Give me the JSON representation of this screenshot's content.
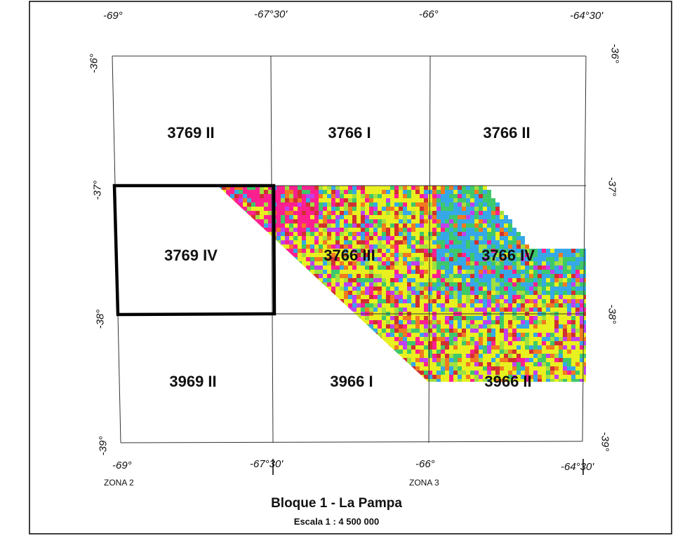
{
  "map": {
    "title": "Bloque 1 - La Pampa",
    "scale": "Escala 1 : 4 500 000",
    "zones": [
      "ZONA 2",
      "ZONA 3"
    ],
    "top_longitudes": [
      "-69°",
      "-67°30'",
      "-66°",
      "-64°30'"
    ],
    "bottom_longitudes": [
      "-69°",
      "-67°30'",
      "-66°",
      "-64°30'"
    ],
    "left_latitudes": [
      "-36°",
      "-37°",
      "-38°",
      "-39°"
    ],
    "right_latitudes": [
      "-36°",
      "-37°",
      "-38°",
      "-39°"
    ],
    "sheets": [
      "3769 II",
      "3766 I",
      "3766 II",
      "3769 IV",
      "3766 III",
      "3766 IV",
      "3969 II",
      "3966 I",
      "3966 II"
    ],
    "highlighted_sheet": "3769 IV",
    "coverage_colors": [
      "#e8f020",
      "#3ec86a",
      "#36a8e8",
      "#ff2090",
      "#c040f0",
      "#f07a20",
      "#a0e040",
      "#d03030"
    ],
    "border_color": "#000000"
  }
}
